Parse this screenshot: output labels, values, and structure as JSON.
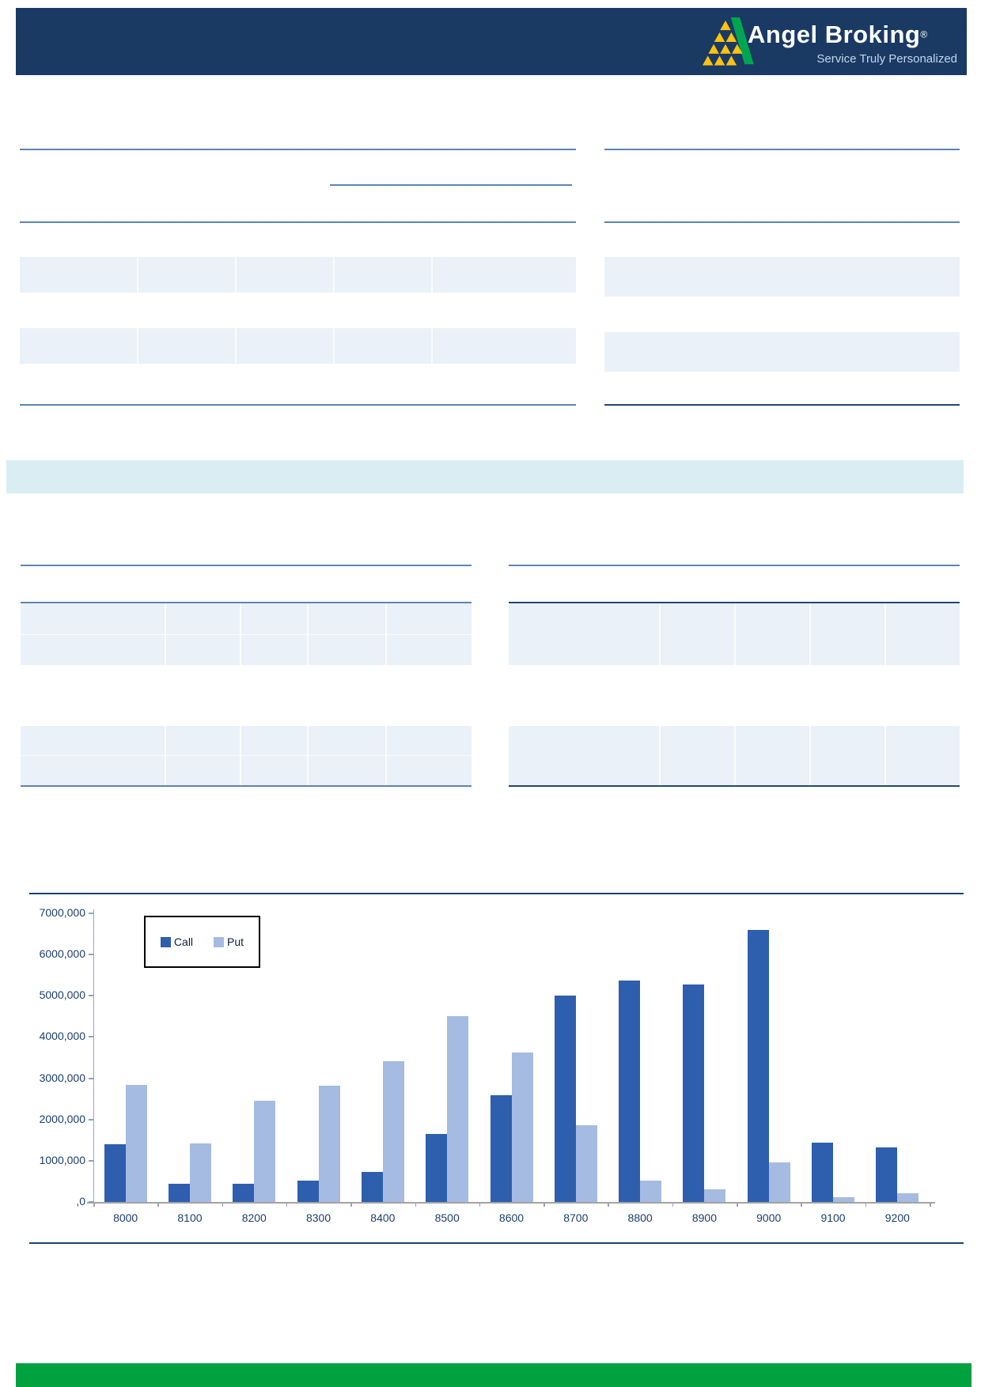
{
  "brand": {
    "name": "Angel Broking",
    "registered": "®",
    "tagline": "Service Truly Personalized"
  },
  "colors": {
    "header_navy": "#1a3a64",
    "rule_steel_blue": "#5d84b4",
    "rule_navy": "#1f4873",
    "row_band_blue": "#eaf1f8",
    "cyan_band": "#d9edf3",
    "call_bar": "#2e5fae",
    "put_bar": "#a6bbe2",
    "footer_green": "#00a13e",
    "logo_yellow": "#ffc20e",
    "logo_green": "#00a551"
  },
  "chart_data": {
    "type": "bar",
    "title": "",
    "xlabel": "",
    "ylabel": "",
    "categories": [
      "8000",
      "8100",
      "8200",
      "8300",
      "8400",
      "8500",
      "8600",
      "8700",
      "8800",
      "8900",
      "9000",
      "9100",
      "9200"
    ],
    "series": [
      {
        "name": "Call",
        "color": "#2e5fae",
        "values": [
          1400000,
          450000,
          450000,
          520000,
          730000,
          1640000,
          2590000,
          5000000,
          5370000,
          5280000,
          6600000,
          1430000,
          1320000
        ]
      },
      {
        "name": "Put",
        "color": "#a6bbe2",
        "values": [
          2840000,
          1420000,
          2450000,
          2820000,
          3420000,
          4500000,
          3630000,
          1860000,
          520000,
          310000,
          950000,
          110000,
          210000
        ]
      }
    ],
    "ylim": [
      0,
      7000000
    ],
    "ytick_labels": [
      "7000,000",
      "6000,000",
      "5000,000",
      "4000,000",
      "3000,000",
      "2000,000",
      "1000,000",
      ",0"
    ],
    "grid": false,
    "legend_position": "top-left"
  }
}
